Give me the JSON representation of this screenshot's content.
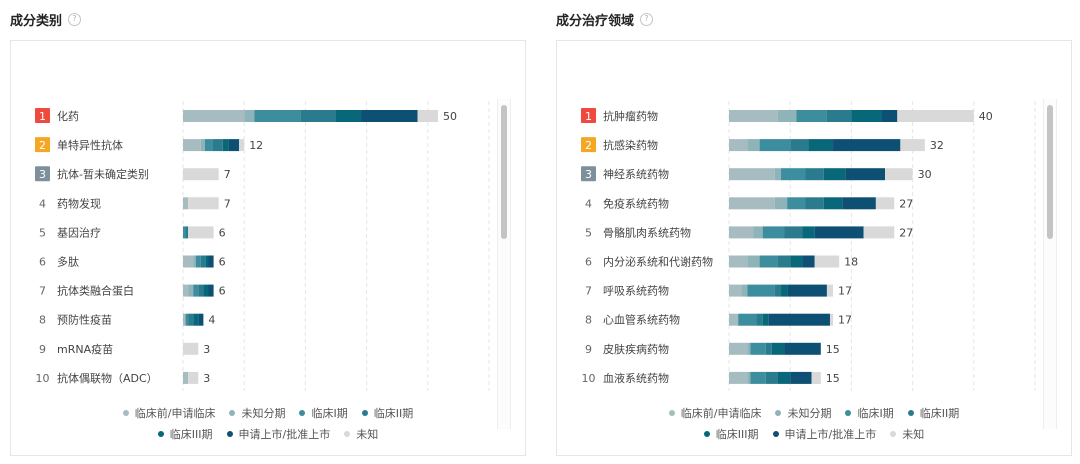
{
  "legend_series": [
    {
      "name": "临床前/申请临床",
      "color": "#a7bcc0"
    },
    {
      "name": "未知分期",
      "color": "#8eb3b9"
    },
    {
      "name": "临床I期",
      "color": "#3c8d9d"
    },
    {
      "name": "临床II期",
      "color": "#2a7b8e"
    },
    {
      "name": "临床III期",
      "color": "#086778"
    },
    {
      "name": "申请上市/批准上市",
      "color": "#0e4f74"
    },
    {
      "name": "未知",
      "color": "#d9d9d9"
    }
  ],
  "charts": [
    {
      "title": "成分类别",
      "help_icon": "question-circle-icon",
      "chart_data": {
        "type": "bar",
        "orientation": "horizontal",
        "stacked": true,
        "grid": "vertical-dashed",
        "xlim": [
          0,
          60
        ],
        "ranks": [
          "1",
          "2",
          "3",
          "4",
          "5",
          "6",
          "7",
          "8",
          "9",
          "10"
        ],
        "categories": [
          "化药",
          "单特异性抗体",
          "抗体-暂未确定类别",
          "药物发现",
          "基因治疗",
          "多肽",
          "抗体类融合蛋白",
          "预防性疫苗",
          "mRNA疫苗",
          "抗体偶联物（ADC）"
        ],
        "totals": [
          50,
          12,
          7,
          7,
          6,
          6,
          6,
          4,
          3,
          3
        ],
        "series": [
          {
            "name": "临床前/申请临床",
            "values": [
              12,
              3.5,
              0,
              1,
              0,
              2,
              1,
              0.5,
              0,
              1
            ]
          },
          {
            "name": "未知分期",
            "values": [
              2,
              0.8,
              0,
              0,
              0,
              0.5,
              1,
              0,
              0,
              0
            ]
          },
          {
            "name": "临床I期",
            "values": [
              9,
              1.5,
              0,
              0,
              0.5,
              1,
              1,
              0.5,
              0,
              0
            ]
          },
          {
            "name": "临床II期",
            "values": [
              7,
              2,
              0,
              0,
              0.5,
              1,
              1,
              1,
              0,
              0
            ]
          },
          {
            "name": "临床III期",
            "values": [
              5,
              1.2,
              0,
              0,
              0,
              0.5,
              1,
              1,
              0,
              0
            ]
          },
          {
            "name": "申请上市/批准上市",
            "values": [
              11,
              2,
              0,
              0,
              0,
              1,
              1,
              1,
              0,
              0
            ]
          },
          {
            "name": "未知",
            "values": [
              4,
              1,
              7,
              6,
              5,
              0,
              0,
              0,
              3,
              2
            ]
          }
        ]
      }
    },
    {
      "title": "成分治疗领域",
      "help_icon": "question-circle-icon",
      "chart_data": {
        "type": "bar",
        "orientation": "horizontal",
        "stacked": true,
        "grid": "vertical-dashed",
        "xlim": [
          0,
          50
        ],
        "ranks": [
          "1",
          "2",
          "3",
          "4",
          "5",
          "6",
          "7",
          "8",
          "9",
          "10"
        ],
        "categories": [
          "抗肿瘤药物",
          "抗感染药物",
          "神经系统药物",
          "免疫系统药物",
          "骨骼肌肉系统药物",
          "内分泌系统和代谢药物",
          "呼吸系统药物",
          "心血管系统药物",
          "皮肤疾病药物",
          "血液系统药物"
        ],
        "totals": [
          40,
          32,
          30,
          27,
          27,
          18,
          17,
          17,
          15,
          15
        ],
        "series": [
          {
            "name": "临床前/申请临床",
            "values": [
              8,
              3,
              7.5,
              7.5,
              4,
              3,
              2,
              1.5,
              3,
              3
            ]
          },
          {
            "name": "未知分期",
            "values": [
              3,
              2,
              1,
              2,
              1.5,
              2,
              1,
              0,
              0.5,
              0.5
            ]
          },
          {
            "name": "临床I期",
            "values": [
              5,
              5,
              4,
              3,
              3.5,
              3,
              4.5,
              3,
              2.5,
              2.5
            ]
          },
          {
            "name": "临床II期",
            "values": [
              4,
              3,
              3,
              3,
              3,
              2,
              1,
              1,
              1,
              2
            ]
          },
          {
            "name": "临床III期",
            "values": [
              5,
              4,
              3.5,
              3,
              2,
              2,
              1,
              1,
              2,
              2
            ]
          },
          {
            "name": "申请上市/批准上市",
            "values": [
              2.5,
              11,
              6.5,
              5.5,
              8,
              2,
              6.5,
              10,
              6,
              3.5
            ]
          },
          {
            "name": "未知",
            "values": [
              12.5,
              4,
              4.5,
              3,
              5,
              4,
              1,
              0.5,
              0,
              1.5
            ]
          }
        ]
      }
    }
  ]
}
